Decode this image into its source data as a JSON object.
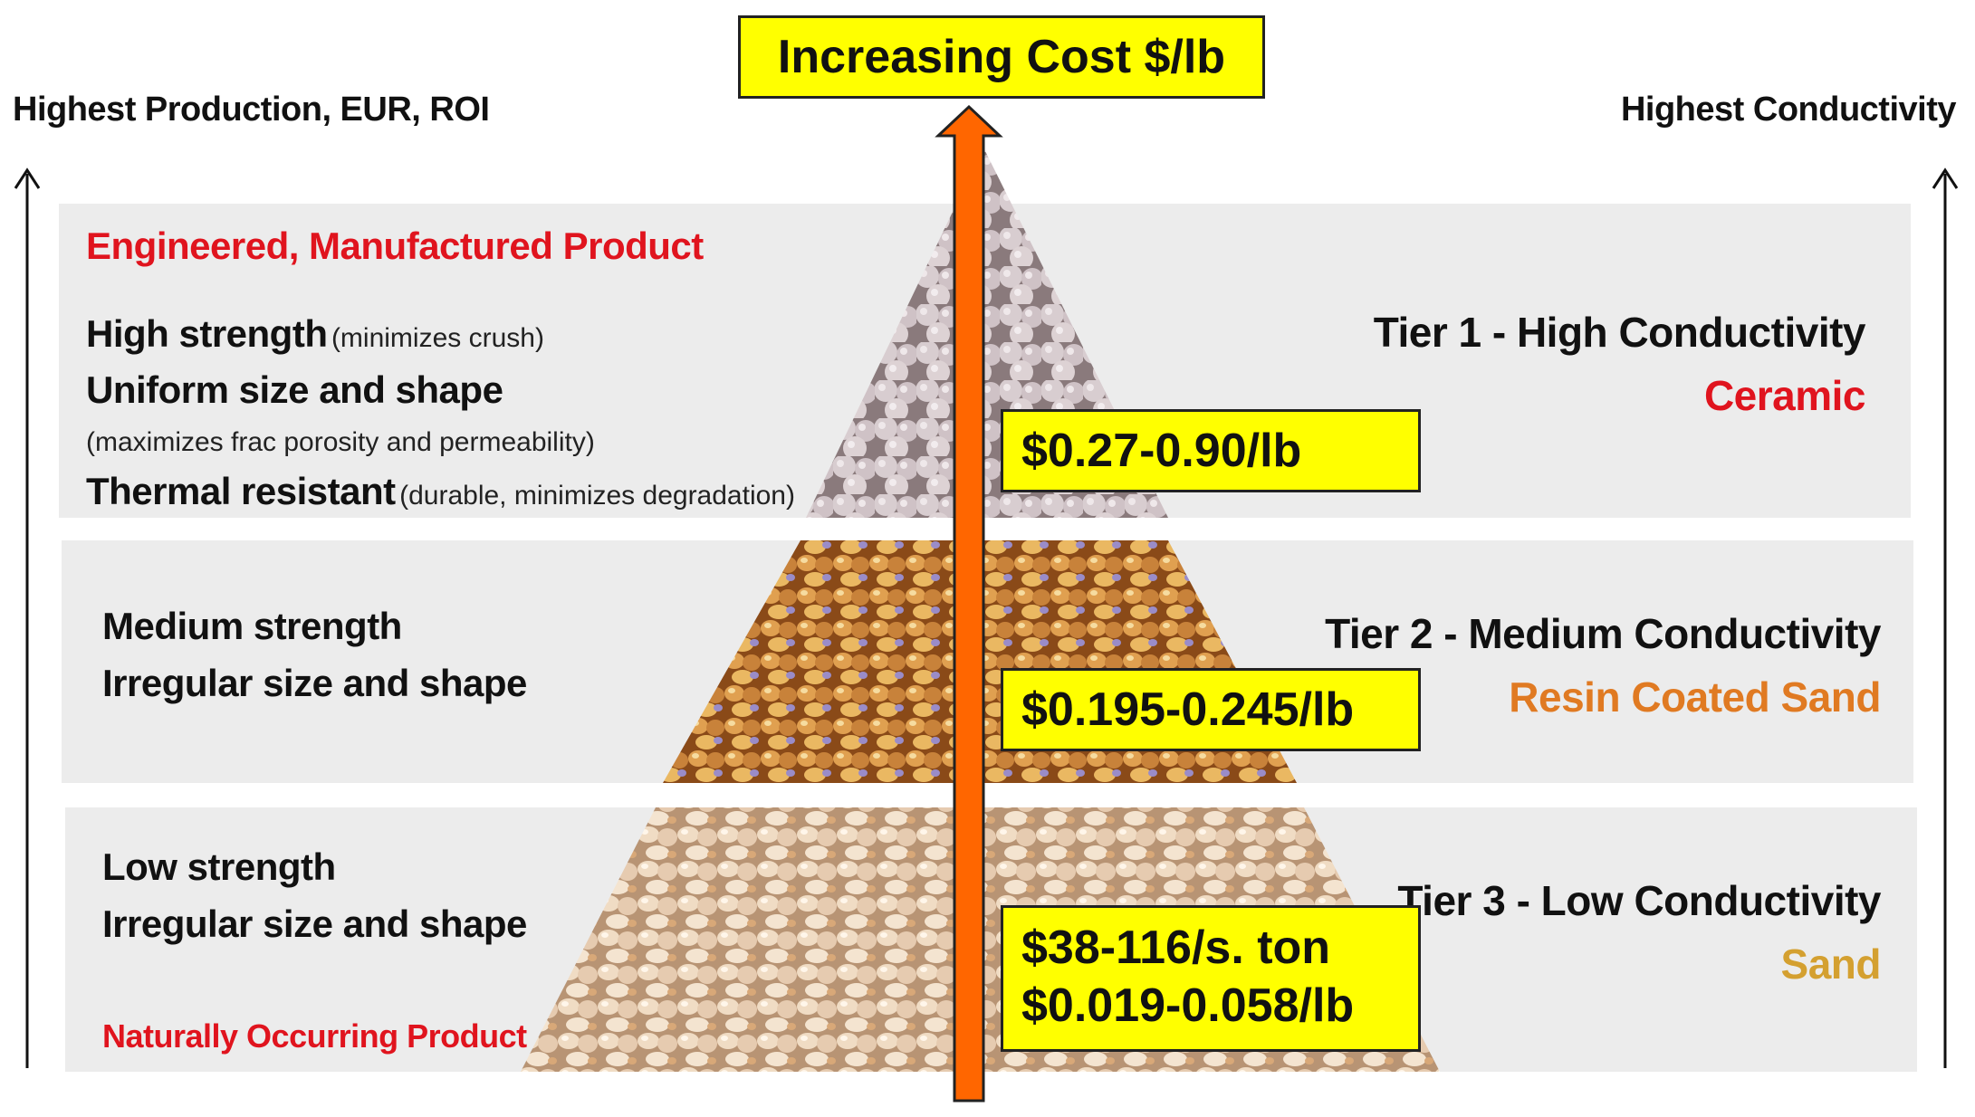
{
  "header": {
    "cost_title": "Increasing Cost $/lb",
    "left_axis_label": "Highest Production, EUR, ROI",
    "right_axis_label": "Highest Conductivity"
  },
  "tier1": {
    "heading": "Engineered, Manufactured Product",
    "line1_bold": "High strength",
    "line1_note": "(minimizes crush)",
    "line2_bold": "Uniform size and shape",
    "line2_note": "(maximizes frac porosity and permeability)",
    "line3_bold": "Thermal resistant",
    "line3_note": "(durable, minimizes degradation)",
    "title": "Tier 1 - High Conductivity",
    "material": "Ceramic",
    "price": "$0.27-0.90/lb"
  },
  "tier2": {
    "line1": "Medium strength",
    "line2": "Irregular size and shape",
    "title": "Tier 2 - Medium Conductivity",
    "material": "Resin Coated Sand",
    "price": "$0.195-0.245/lb"
  },
  "tier3": {
    "line1": "Low strength",
    "line2": "Irregular size and shape",
    "footnote": "Naturally Occurring Product",
    "title": "Tier 3 - Low Conductivity",
    "material": "Sand",
    "price_line1": "$38-116/s. ton",
    "price_line2": "$0.019-0.058/lb"
  },
  "colors": {
    "ceramic": "#e0141e",
    "resin": "#e07a22",
    "sand": "#d4a030",
    "arrow": "#ff6600",
    "price_box": "#ffff00"
  }
}
